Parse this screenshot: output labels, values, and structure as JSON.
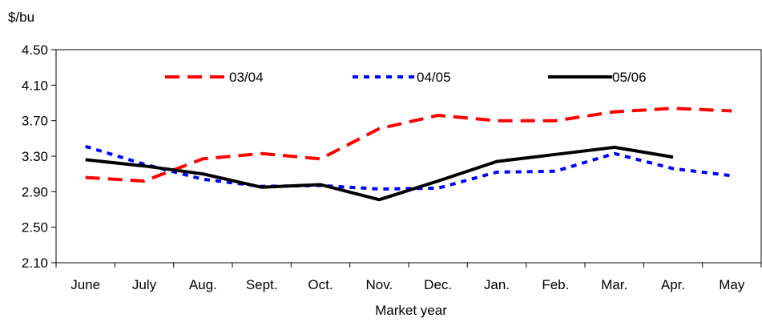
{
  "chart_data": {
    "type": "line",
    "ylabel": "$/bu",
    "xlabel": "Market year",
    "ylim": [
      2.1,
      4.5
    ],
    "yticks": [
      "4.50",
      "4.10",
      "3.70",
      "3.30",
      "2.90",
      "2.50",
      "2.10"
    ],
    "categories": [
      "June",
      "July",
      "Aug.",
      "Sept.",
      "Oct.",
      "Nov.",
      "Dec.",
      "Jan.",
      "Feb.",
      "Mar.",
      "Apr.",
      "May"
    ],
    "grid": false,
    "legend_position": "top",
    "series": [
      {
        "name": "03/04",
        "color": "#ff0000",
        "style": "dashed",
        "values": [
          3.06,
          3.02,
          3.27,
          3.33,
          3.27,
          3.61,
          3.76,
          3.7,
          3.7,
          3.8,
          3.84,
          3.81
        ]
      },
      {
        "name": "04/05",
        "color": "#0000ff",
        "style": "dotted",
        "values": [
          3.41,
          3.21,
          3.04,
          2.96,
          2.97,
          2.93,
          2.94,
          3.12,
          3.13,
          3.33,
          3.16,
          3.08
        ]
      },
      {
        "name": "05/06",
        "color": "#000000",
        "style": "solid",
        "values": [
          3.26,
          3.19,
          3.1,
          2.95,
          2.98,
          2.81,
          3.02,
          3.24,
          3.32,
          3.4,
          3.29,
          null
        ]
      }
    ]
  }
}
